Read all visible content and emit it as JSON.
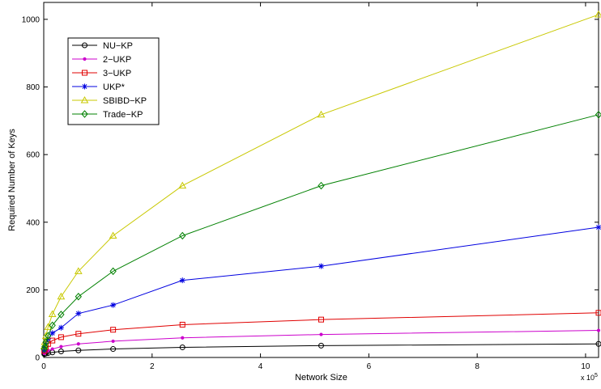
{
  "chart_data": {
    "type": "line",
    "title": "",
    "xlabel": "Network Size",
    "ylabel": "Required Number of Keys",
    "x_exponent_label": "x 10",
    "x_exponent_power": "5",
    "xlim": [
      0,
      10.24
    ],
    "ylim": [
      0,
      1050
    ],
    "x_ticks": [
      0,
      2,
      4,
      6,
      8,
      10
    ],
    "y_ticks": [
      0,
      200,
      400,
      600,
      800,
      1000
    ],
    "grid": false,
    "legend_position": "top-left",
    "x": [
      0.01,
      0.02,
      0.04,
      0.08,
      0.16,
      0.32,
      0.64,
      1.28,
      2.56,
      5.12,
      10.24
    ],
    "series": [
      {
        "name": "NU−KP",
        "color": "#000000",
        "marker": "circle",
        "values": [
          10,
          11,
          12,
          13,
          15,
          18,
          21,
          25,
          30,
          35,
          40
        ]
      },
      {
        "name": "2−UKP",
        "color": "#cc00cc",
        "marker": "dot",
        "values": [
          12,
          14,
          17,
          20,
          25,
          32,
          40,
          48,
          58,
          68,
          80
        ]
      },
      {
        "name": "3−UKP",
        "color": "#e00000",
        "marker": "square",
        "values": [
          20,
          25,
          32,
          40,
          50,
          60,
          70,
          82,
          97,
          112,
          132
        ]
      },
      {
        "name": "UKP*",
        "color": "#0000e0",
        "marker": "star",
        "values": [
          22,
          30,
          42,
          55,
          72,
          88,
          130,
          155,
          228,
          270,
          385
        ]
      },
      {
        "name": "SBIBD−KP",
        "color": "#c8c800",
        "marker": "triangle",
        "values": [
          33,
          45,
          63,
          90,
          128,
          180,
          255,
          360,
          508,
          718,
          1014
        ]
      },
      {
        "name": "Trade−KP",
        "color": "#008000",
        "marker": "diamond",
        "values": [
          25,
          32,
          45,
          64,
          95,
          127,
          180,
          255,
          360,
          508,
          718
        ]
      }
    ]
  }
}
